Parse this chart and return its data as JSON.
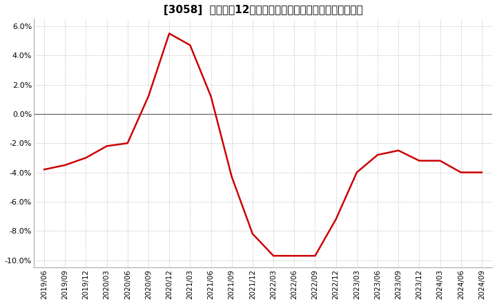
{
  "title": "[3058]  売上高の12か月移動合計の対前年同期増減率の推移",
  "line_color": "#cc0000",
  "background_color": "#ffffff",
  "plot_bg_color": "#ffffff",
  "grid_color": "#aaaaaa",
  "ylim": [
    -0.105,
    0.065
  ],
  "yticks": [
    -0.1,
    -0.08,
    -0.06,
    -0.04,
    -0.02,
    0.0,
    0.02,
    0.04,
    0.06
  ],
  "dates": [
    "2019/06",
    "2019/09",
    "2019/12",
    "2020/03",
    "2020/06",
    "2020/09",
    "2020/12",
    "2021/03",
    "2021/06",
    "2021/09",
    "2021/12",
    "2022/03",
    "2022/06",
    "2022/09",
    "2022/12",
    "2023/03",
    "2023/06",
    "2023/09",
    "2023/12",
    "2024/03",
    "2024/06",
    "2024/09"
  ],
  "values": [
    -0.038,
    -0.035,
    -0.03,
    -0.022,
    -0.02,
    0.012,
    0.055,
    0.047,
    0.012,
    -0.043,
    -0.082,
    -0.097,
    -0.097,
    -0.097,
    -0.072,
    -0.04,
    -0.028,
    -0.025,
    -0.032,
    -0.032,
    -0.04,
    -0.04
  ],
  "line_width": 1.8,
  "title_fontsize": 11,
  "tick_fontsize": 8,
  "xtick_fontsize": 7.5
}
